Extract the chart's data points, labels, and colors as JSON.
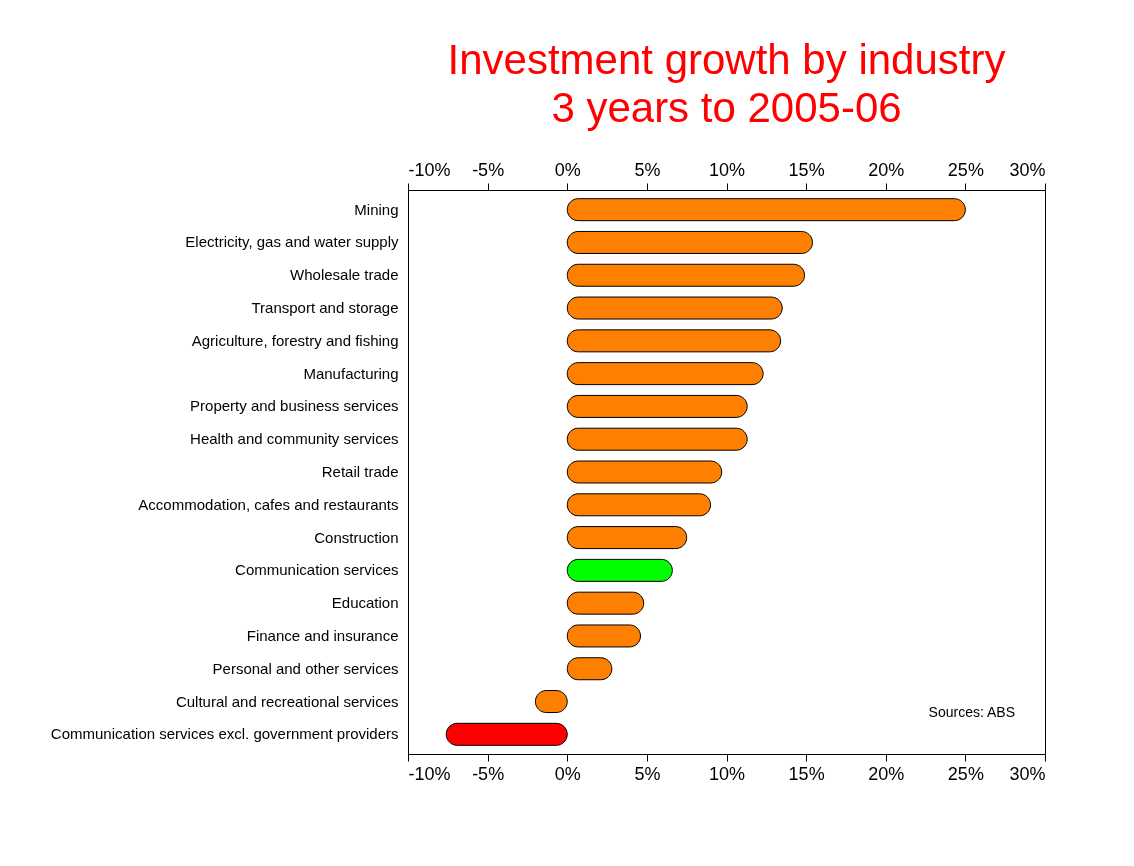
{
  "chart_data": {
    "type": "bar",
    "orientation": "horizontal",
    "title": "Investment growth by industry\n3 years to 2005-06",
    "categories": [
      "Mining",
      "Electricity, gas and water supply",
      "Wholesale trade",
      "Transport and storage",
      "Agriculture, forestry and fishing",
      "Manufacturing",
      "Property and business services",
      "Health and community services",
      "Retail trade",
      "Accommodation, cafes and restaurants",
      "Construction",
      "Communication services",
      "Education",
      "Finance and insurance",
      "Personal and other services",
      "Cultural and recreational services",
      "Communication services excl. government providers"
    ],
    "values": [
      25.0,
      15.4,
      14.9,
      13.5,
      13.4,
      12.3,
      11.3,
      11.3,
      9.7,
      9.0,
      7.5,
      6.6,
      4.8,
      4.6,
      2.8,
      -2.0,
      -7.6
    ],
    "colors": [
      "#ff7f00",
      "#ff7f00",
      "#ff7f00",
      "#ff7f00",
      "#ff7f00",
      "#ff7f00",
      "#ff7f00",
      "#ff7f00",
      "#ff7f00",
      "#ff7f00",
      "#ff7f00",
      "#00ff00",
      "#ff7f00",
      "#ff7f00",
      "#ff7f00",
      "#ff7f00",
      "#ff0000"
    ],
    "xlim": [
      -10,
      30
    ],
    "xticks": [
      {
        "value": -10,
        "label": "-10%"
      },
      {
        "value": -5,
        "label": "-5%"
      },
      {
        "value": 0,
        "label": "0%"
      },
      {
        "value": 5,
        "label": "5%"
      },
      {
        "value": 10,
        "label": "10%"
      },
      {
        "value": 15,
        "label": "15%"
      },
      {
        "value": 20,
        "label": "20%"
      },
      {
        "value": 25,
        "label": "25%"
      },
      {
        "value": 30,
        "label": "30%"
      }
    ],
    "x2lim": [
      -10,
      30
    ],
    "x2ticks": [
      {
        "value": -10,
        "label": "-10%"
      },
      {
        "value": -5,
        "label": "-5%"
      },
      {
        "value": 0,
        "label": "0%"
      },
      {
        "value": 5,
        "label": "5%"
      },
      {
        "value": 10,
        "label": "10%"
      },
      {
        "value": 15,
        "label": "15%"
      },
      {
        "value": 20,
        "label": "20%"
      },
      {
        "value": 25,
        "label": "25%"
      },
      {
        "value": 30,
        "label": "30%"
      }
    ],
    "annotations": [
      "Sources: ABS"
    ],
    "grid": false
  }
}
